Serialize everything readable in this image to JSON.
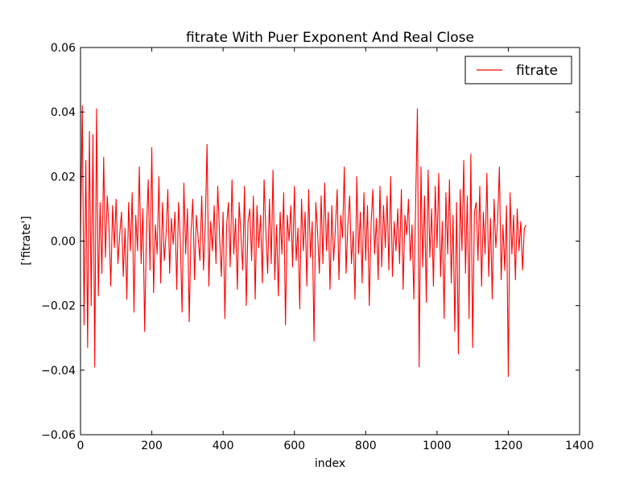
{
  "chart_data": {
    "type": "line",
    "title": "fitrate With Puer Exponent And Real Close",
    "xlabel": "index",
    "ylabel": "['fitrate']",
    "xlim": [
      0,
      1400
    ],
    "ylim": [
      -0.06,
      0.06
    ],
    "xticks": [
      "0",
      "200",
      "400",
      "600",
      "800",
      "1000",
      "1200",
      "1400"
    ],
    "yticks": [
      "−0.06",
      "−0.04",
      "−0.02",
      "0.00",
      "0.02",
      "0.04",
      "0.06"
    ],
    "grid": false,
    "legend": {
      "position": "top-right",
      "entries": [
        "fitrate"
      ]
    },
    "series": [
      {
        "name": "fitrate",
        "color": "#ff0000",
        "x_start": 0,
        "x_step": 5,
        "values": [
          0.0,
          0.042,
          -0.026,
          0.025,
          -0.033,
          0.034,
          -0.02,
          0.033,
          -0.039,
          0.041,
          -0.017,
          0.012,
          -0.01,
          0.026,
          -0.005,
          0.014,
          0.004,
          -0.014,
          0.011,
          -0.002,
          0.013,
          -0.007,
          0.002,
          0.009,
          -0.011,
          0.004,
          -0.018,
          0.012,
          -0.003,
          0.015,
          -0.022,
          0.008,
          -0.003,
          0.023,
          -0.007,
          0.01,
          -0.028,
          0.003,
          0.019,
          -0.009,
          0.029,
          -0.016,
          0.005,
          -0.004,
          0.02,
          -0.013,
          0.012,
          -0.006,
          0.002,
          0.016,
          -0.01,
          0.007,
          -0.001,
          0.009,
          -0.015,
          0.012,
          0.0,
          -0.022,
          0.018,
          -0.004,
          0.01,
          -0.025,
          0.003,
          0.013,
          -0.012,
          0.008,
          0.001,
          -0.006,
          0.014,
          -0.009,
          0.005,
          0.03,
          -0.014,
          0.006,
          -0.003,
          0.011,
          -0.007,
          0.017,
          0.002,
          -0.011,
          0.009,
          -0.024,
          0.005,
          0.012,
          -0.008,
          0.019,
          -0.004,
          0.007,
          -0.015,
          0.012,
          0.002,
          -0.009,
          0.017,
          -0.02,
          0.006,
          0.01,
          -0.006,
          0.014,
          -0.018,
          0.011,
          -0.002,
          0.008,
          -0.013,
          0.019,
          0.003,
          -0.01,
          0.013,
          -0.007,
          0.022,
          -0.012,
          0.005,
          -0.017,
          0.009,
          -0.004,
          0.015,
          -0.026,
          0.008,
          0.0,
          0.011,
          -0.008,
          0.017,
          -0.006,
          0.004,
          -0.021,
          0.013,
          -0.003,
          0.009,
          -0.014,
          0.016,
          -0.005,
          0.006,
          -0.031,
          0.012,
          0.003,
          -0.01,
          0.014,
          -0.007,
          0.018,
          -0.003,
          0.009,
          -0.015,
          0.011,
          -0.006,
          0.004,
          0.016,
          -0.012,
          0.008,
          0.001,
          0.023,
          -0.01,
          0.005,
          0.014,
          -0.007,
          0.003,
          -0.018,
          0.02,
          -0.004,
          0.009,
          -0.013,
          0.015,
          -0.006,
          0.011,
          -0.02,
          0.005,
          0.016,
          -0.004,
          0.007,
          -0.012,
          0.017,
          -0.008,
          0.011,
          -0.002,
          0.014,
          -0.009,
          0.02,
          -0.011,
          0.006,
          -0.003,
          0.01,
          -0.007,
          0.016,
          -0.015,
          0.008,
          0.002,
          0.013,
          -0.006,
          0.005,
          -0.018,
          0.011,
          0.041,
          -0.039,
          0.023,
          -0.008,
          0.014,
          -0.019,
          0.022,
          -0.005,
          0.01,
          -0.014,
          0.017,
          -0.002,
          0.021,
          -0.011,
          0.006,
          -0.024,
          0.015,
          -0.004,
          0.019,
          -0.013,
          0.008,
          -0.028,
          0.012,
          -0.035,
          0.016,
          -0.003,
          0.025,
          -0.01,
          0.014,
          -0.024,
          0.027,
          -0.033,
          0.009,
          0.012,
          -0.006,
          0.017,
          -0.014,
          0.009,
          -0.004,
          0.021,
          -0.011,
          0.007,
          -0.018,
          0.013,
          -0.002,
          0.006,
          0.023,
          -0.012,
          0.005,
          -0.009,
          0.011,
          -0.042,
          0.015,
          -0.004,
          0.008,
          -0.012,
          0.01,
          -0.003,
          0.006,
          -0.009,
          0.004,
          0.005
        ]
      }
    ]
  }
}
